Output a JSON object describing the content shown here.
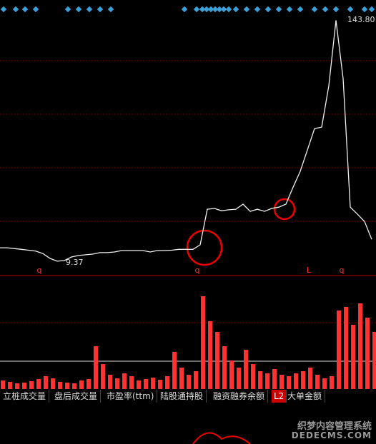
{
  "chart_data": [
    {
      "type": "line",
      "log_scale": true,
      "color": "#f0f0f0",
      "ylim": [
        8.1,
        181
      ],
      "values": [
        11.0,
        11.0,
        10.9,
        10.8,
        10.7,
        10.6,
        10.3,
        9.75,
        9.45,
        9.52,
        9.91,
        10.08,
        10.16,
        10.24,
        10.41,
        10.41,
        10.49,
        10.66,
        10.66,
        10.66,
        10.66,
        10.49,
        10.66,
        10.66,
        10.7,
        10.8,
        10.8,
        10.8,
        11.37,
        17.0,
        17.15,
        16.7,
        16.9,
        17.0,
        18.0,
        16.6,
        17.0,
        16.6,
        17.15,
        17.4,
        18.0,
        21.8,
        26.1,
        33.2,
        42.3,
        43.0,
        68.7,
        143.8,
        74.5,
        17.4,
        16.1,
        14.8,
        12.1
      ],
      "annotations": [
        "143.80",
        "9.37"
      ],
      "markers": [
        "q",
        "q",
        "L",
        "q"
      ]
    },
    {
      "type": "bar",
      "color": "#ff3232",
      "ylim": [
        0,
        140
      ],
      "values": [
        12,
        10,
        8,
        9,
        11,
        14,
        18,
        15,
        10,
        9,
        8,
        12,
        14,
        60,
        35,
        20,
        15,
        22,
        18,
        12,
        14,
        16,
        13,
        18,
        52,
        30,
        20,
        25,
        130,
        95,
        80,
        60,
        40,
        30,
        55,
        35,
        25,
        22,
        28,
        20,
        18,
        22,
        25,
        30,
        20,
        15,
        18,
        110,
        115,
        90,
        120,
        100,
        80
      ]
    }
  ],
  "tabs": [
    "立桩成交量",
    "盘后成交量",
    "市盈率(ttm)",
    "陆股通持股",
    "融资融券余额",
    "L2",
    "大单金额"
  ],
  "watermark": [
    "织梦内容管理系统",
    "DEDECMS.COM"
  ]
}
